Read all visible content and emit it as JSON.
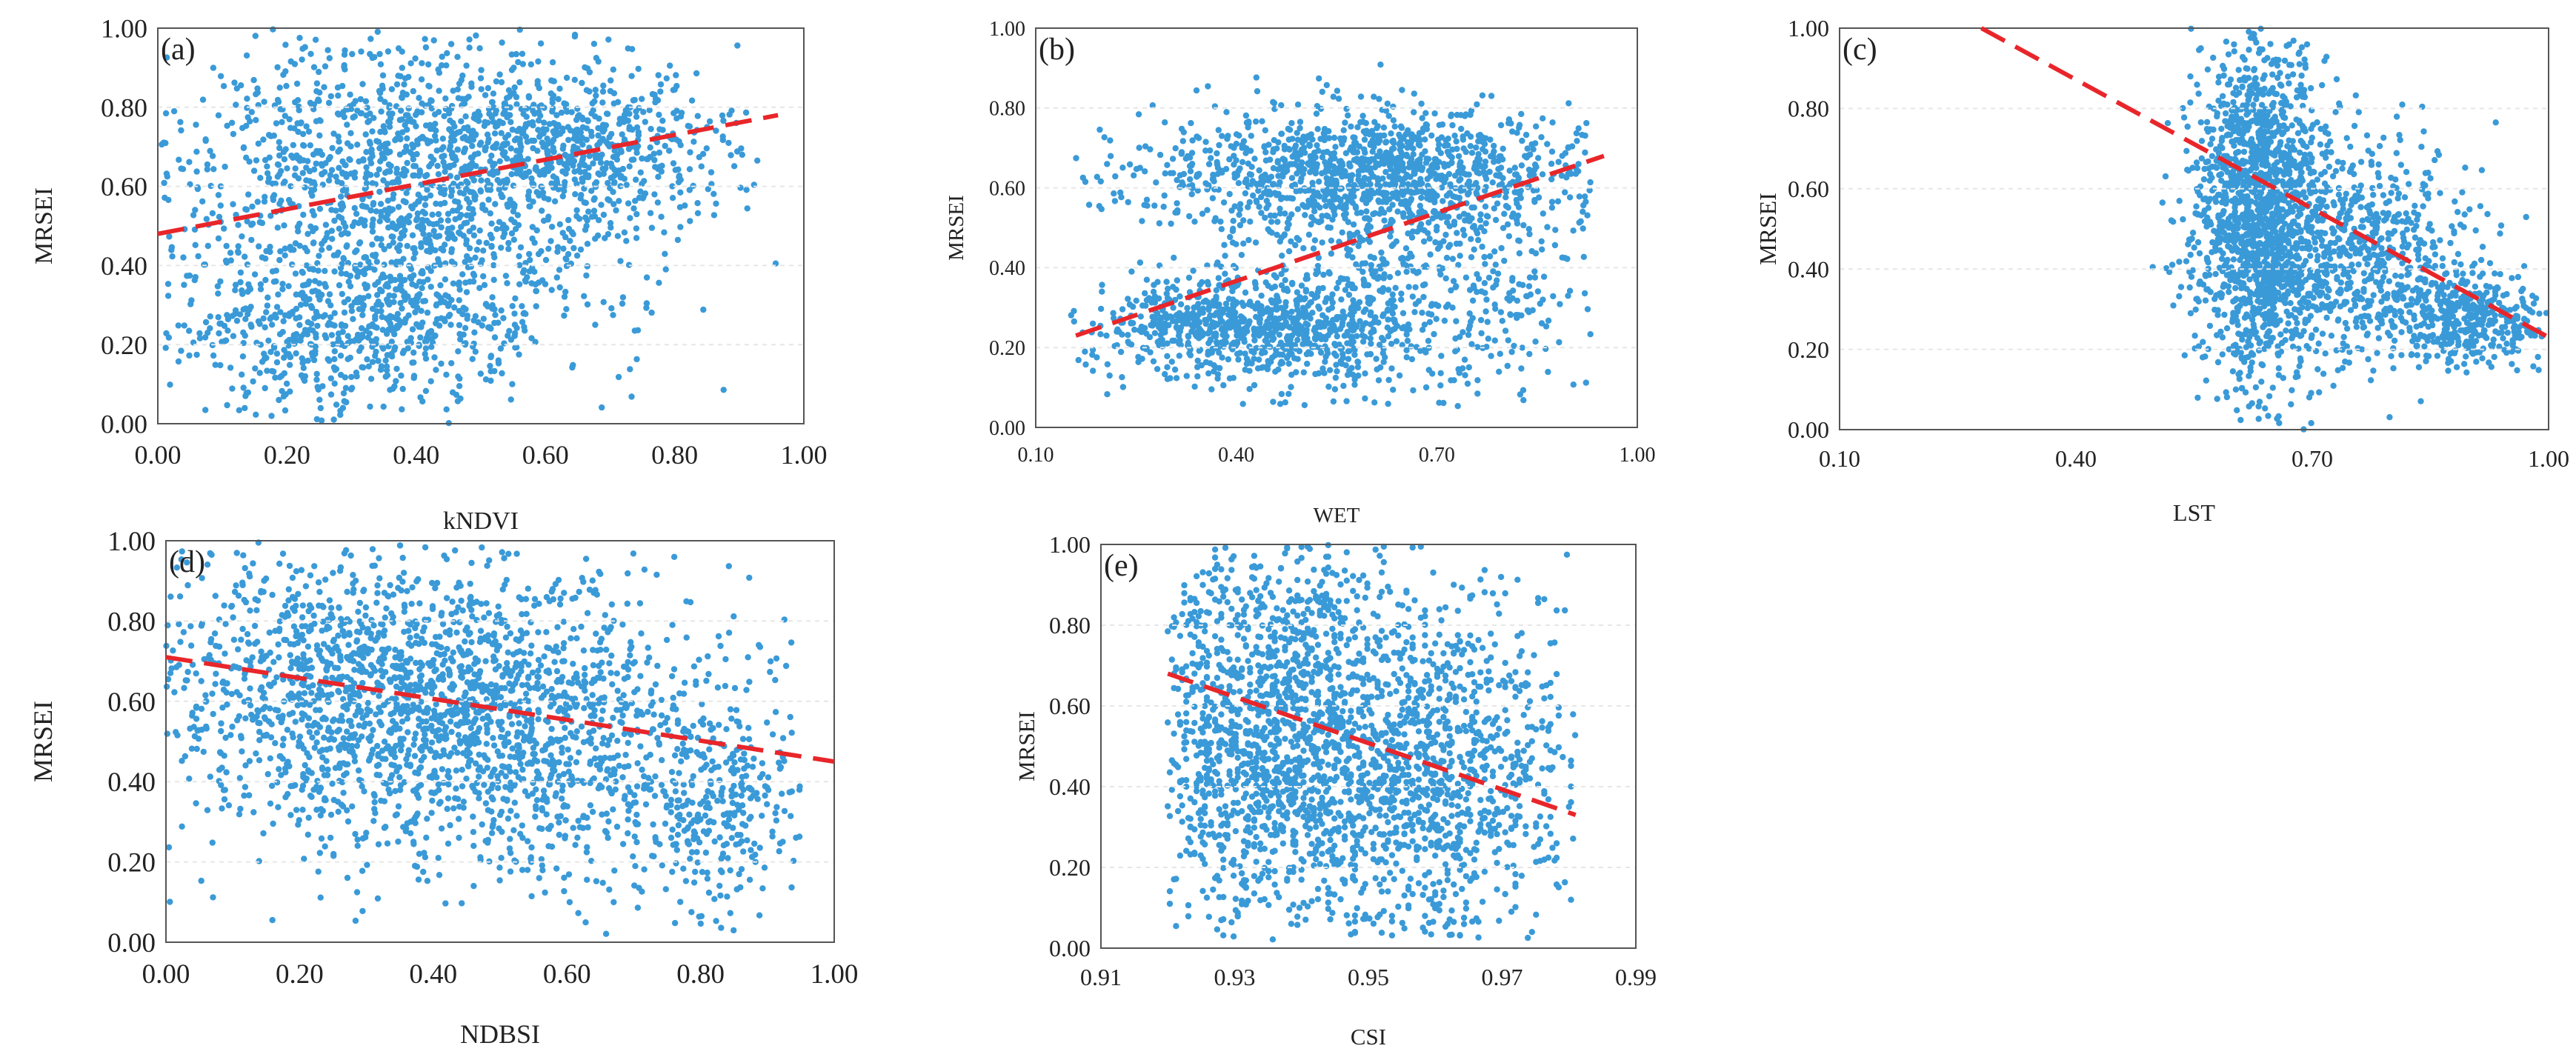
{
  "figure": {
    "point_color": "#3a9ad8",
    "fit_color": "#e8262a"
  },
  "chart_data": [
    {
      "type": "scatter",
      "panel": "(a)",
      "xlabel": "kNDVI",
      "ylabel": "MRSEI",
      "xlim": [
        0.0,
        1.0
      ],
      "ylim": [
        0.0,
        1.0
      ],
      "xticks": [
        "0.00",
        "0.20",
        "0.40",
        "0.60",
        "0.80",
        "1.00"
      ],
      "xtick_values": [
        0.0,
        0.2,
        0.4,
        0.6,
        0.8,
        1.0
      ],
      "yticks": [
        "0.00",
        "0.20",
        "0.40",
        "0.60",
        "0.80",
        "1.00"
      ],
      "ytick_values": [
        0.0,
        0.2,
        0.4,
        0.6,
        0.8,
        1.0
      ],
      "fit_line": {
        "x": [
          0.0,
          0.96
        ],
        "y": [
          0.48,
          0.78
        ]
      },
      "clusters": [
        {
          "x": 0.4,
          "y": 0.62,
          "sx": 0.19,
          "sy": 0.2,
          "w": 0.55
        },
        {
          "x": 0.65,
          "y": 0.7,
          "sx": 0.12,
          "sy": 0.09,
          "w": 0.2
        },
        {
          "x": 0.3,
          "y": 0.25,
          "sx": 0.16,
          "sy": 0.12,
          "w": 0.25
        }
      ],
      "x_range": [
        0.0,
        0.96
      ],
      "y_range": [
        0.0,
        1.0
      ]
    },
    {
      "type": "scatter",
      "panel": "(b)",
      "xlabel": "WET",
      "ylabel": "MRSEI",
      "xlim": [
        0.1,
        1.0
      ],
      "ylim": [
        0.0,
        1.0
      ],
      "xticks": [
        "0.10",
        "0.40",
        "0.70",
        "1.00"
      ],
      "xtick_values": [
        0.1,
        0.4,
        0.7,
        1.0
      ],
      "yticks": [
        "0.00",
        "0.20",
        "0.40",
        "0.60",
        "0.80",
        "1.00"
      ],
      "ytick_values": [
        0.0,
        0.2,
        0.4,
        0.6,
        0.8,
        1.0
      ],
      "fit_line": {
        "x": [
          0.16,
          0.95
        ],
        "y": [
          0.23,
          0.68
        ]
      },
      "clusters": [
        {
          "x": 0.6,
          "y": 0.64,
          "sx": 0.16,
          "sy": 0.08,
          "w": 0.45
        },
        {
          "x": 0.42,
          "y": 0.25,
          "sx": 0.12,
          "sy": 0.06,
          "w": 0.3
        },
        {
          "x": 0.65,
          "y": 0.35,
          "sx": 0.15,
          "sy": 0.17,
          "w": 0.25
        }
      ],
      "x_range": [
        0.15,
        0.93
      ],
      "y_range": [
        0.05,
        0.99
      ]
    },
    {
      "type": "scatter",
      "panel": "(c)",
      "xlabel": "LST",
      "ylabel": "MRSEI",
      "xlim": [
        0.1,
        1.0
      ],
      "ylim": [
        0.0,
        1.0
      ],
      "xticks": [
        "0.10",
        "0.40",
        "0.70",
        "1.00"
      ],
      "xtick_values": [
        0.1,
        0.4,
        0.7,
        1.0
      ],
      "yticks": [
        "0.00",
        "0.20",
        "0.40",
        "0.60",
        "0.80",
        "1.00"
      ],
      "ytick_values": [
        0.0,
        0.2,
        0.4,
        0.6,
        0.8,
        1.0
      ],
      "fit_line": {
        "x": [
          0.28,
          1.0
        ],
        "y": [
          1.0,
          0.23
        ]
      },
      "clusters": [
        {
          "x": 0.63,
          "y": 0.55,
          "sx": 0.04,
          "sy": 0.22,
          "w": 0.55
        },
        {
          "x": 0.75,
          "y": 0.45,
          "sx": 0.08,
          "sy": 0.14,
          "w": 0.3
        },
        {
          "x": 0.9,
          "y": 0.28,
          "sx": 0.05,
          "sy": 0.06,
          "w": 0.15
        }
      ],
      "x_range": [
        0.47,
        1.0
      ],
      "y_range": [
        0.0,
        1.0
      ]
    },
    {
      "type": "scatter",
      "panel": "(d)",
      "xlabel": "NDBSI",
      "ylabel": "MRSEI",
      "xlim": [
        0.0,
        1.0
      ],
      "ylim": [
        0.0,
        1.0
      ],
      "xticks": [
        "0.00",
        "0.20",
        "0.40",
        "0.60",
        "0.80",
        "1.00"
      ],
      "xtick_values": [
        0.0,
        0.2,
        0.4,
        0.6,
        0.8,
        1.0
      ],
      "yticks": [
        "0.00",
        "0.20",
        "0.40",
        "0.60",
        "0.80",
        "1.00"
      ],
      "ytick_values": [
        0.0,
        0.2,
        0.4,
        0.6,
        0.8,
        1.0
      ],
      "fit_line": {
        "x": [
          0.0,
          1.0
        ],
        "y": [
          0.71,
          0.45
        ]
      },
      "clusters": [
        {
          "x": 0.3,
          "y": 0.62,
          "sx": 0.18,
          "sy": 0.18,
          "w": 0.55
        },
        {
          "x": 0.55,
          "y": 0.5,
          "sx": 0.18,
          "sy": 0.2,
          "w": 0.35
        },
        {
          "x": 0.82,
          "y": 0.35,
          "sx": 0.06,
          "sy": 0.15,
          "w": 0.1
        }
      ],
      "x_range": [
        0.0,
        0.95
      ],
      "y_range": [
        0.02,
        1.0
      ]
    },
    {
      "type": "scatter",
      "panel": "(e)",
      "xlabel": "CSI",
      "ylabel": "MRSEI",
      "xlim": [
        0.91,
        0.99
      ],
      "ylim": [
        0.0,
        1.0
      ],
      "xticks": [
        "0.91",
        "0.93",
        "0.95",
        "0.97",
        "0.99"
      ],
      "xtick_values": [
        0.91,
        0.93,
        0.95,
        0.97,
        0.99
      ],
      "yticks": [
        "0.00",
        "0.20",
        "0.40",
        "0.60",
        "0.80",
        "1.00"
      ],
      "ytick_values": [
        0.0,
        0.2,
        0.4,
        0.6,
        0.8,
        1.0
      ],
      "fit_line": {
        "x": [
          0.92,
          0.981
        ],
        "y": [
          0.68,
          0.33
        ]
      },
      "clusters": [
        {
          "x": 0.935,
          "y": 0.55,
          "sx": 0.01,
          "sy": 0.26,
          "w": 0.6
        },
        {
          "x": 0.96,
          "y": 0.45,
          "sx": 0.01,
          "sy": 0.22,
          "w": 0.4
        }
      ],
      "x_range": [
        0.92,
        0.981
      ],
      "y_range": [
        0.02,
        1.0
      ],
      "vertical_striping": true
    }
  ]
}
